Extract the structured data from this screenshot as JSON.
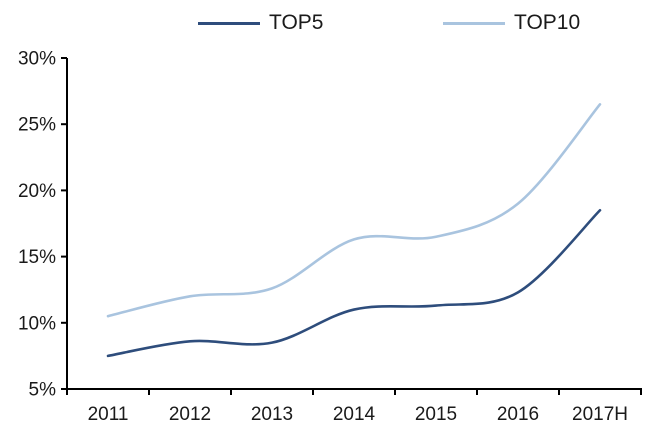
{
  "chart_data": {
    "type": "line",
    "categories": [
      "2011",
      "2012",
      "2013",
      "2014",
      "2015",
      "2016",
      "2017H"
    ],
    "series": [
      {
        "name": "TOP5",
        "color": "#2e4d7c",
        "values": [
          7.5,
          8.6,
          8.5,
          11.0,
          11.3,
          12.3,
          18.5
        ]
      },
      {
        "name": "TOP10",
        "color": "#a9c4df",
        "values": [
          10.5,
          12.0,
          12.6,
          16.3,
          16.5,
          19.0,
          26.5
        ]
      }
    ],
    "ylim": [
      5,
      30
    ],
    "yticks": [
      5,
      10,
      15,
      20,
      25,
      30
    ],
    "ytick_labels": [
      "5%",
      "10%",
      "15%",
      "20%",
      "25%",
      "30%"
    ],
    "xlabel": "",
    "ylabel": "",
    "grid": false,
    "legend_position": "top",
    "line_style": "smooth",
    "axis_color": "#000000",
    "text_color": "#1a1a1a"
  }
}
